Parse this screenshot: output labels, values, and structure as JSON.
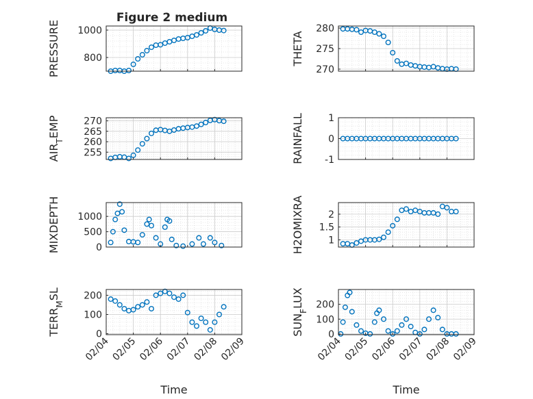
{
  "figure": {
    "title": "Figure 2 medium"
  },
  "chart_data": [
    {
      "type": "scatter",
      "ylabel": "PRESSURE",
      "xlim": [
        "2024-02-04",
        "2024-02-09"
      ],
      "ylim": [
        700,
        1030
      ],
      "yticks": [
        800,
        1000
      ],
      "ytick_labels": [
        "800",
        "1000"
      ],
      "xticks": [
        "02/04",
        "02/05",
        "02/06",
        "02/07",
        "02/08",
        "02/09"
      ],
      "grid": true,
      "x": [
        "2024-02-04T04:00",
        "2024-02-04T08:00",
        "2024-02-04T12:00",
        "2024-02-04T16:00",
        "2024-02-04T20:00",
        "2024-02-05T00:00",
        "2024-02-05T04:00",
        "2024-02-05T08:00",
        "2024-02-05T12:00",
        "2024-02-05T16:00",
        "2024-02-05T20:00",
        "2024-02-06T00:00",
        "2024-02-06T04:00",
        "2024-02-06T08:00",
        "2024-02-06T12:00",
        "2024-02-06T16:00",
        "2024-02-06T20:00",
        "2024-02-07T00:00",
        "2024-02-07T04:00",
        "2024-02-07T08:00",
        "2024-02-07T12:00",
        "2024-02-07T16:00",
        "2024-02-07T20:00",
        "2024-02-08T00:00",
        "2024-02-08T04:00",
        "2024-02-08T08:00"
      ],
      "y": [
        700,
        705,
        705,
        700,
        705,
        750,
        790,
        820,
        850,
        875,
        890,
        893,
        905,
        915,
        925,
        935,
        940,
        945,
        955,
        965,
        980,
        995,
        1015,
        1005,
        1000,
        997
      ]
    },
    {
      "type": "scatter",
      "ylabel": "THETA",
      "xlim": [
        "2024-02-04",
        "2024-02-09"
      ],
      "ylim": [
        269.5,
        280.5
      ],
      "yticks": [
        270,
        275,
        280
      ],
      "ytick_labels": [
        "270",
        "275",
        "280"
      ],
      "xticks": [
        "02/04",
        "02/05",
        "02/06",
        "02/07",
        "02/08",
        "02/09"
      ],
      "grid": true,
      "x": [
        "2024-02-04T04:00",
        "2024-02-04T08:00",
        "2024-02-04T12:00",
        "2024-02-04T16:00",
        "2024-02-04T20:00",
        "2024-02-05T00:00",
        "2024-02-05T04:00",
        "2024-02-05T08:00",
        "2024-02-05T12:00",
        "2024-02-05T16:00",
        "2024-02-05T20:00",
        "2024-02-06T00:00",
        "2024-02-06T04:00",
        "2024-02-06T08:00",
        "2024-02-06T12:00",
        "2024-02-06T16:00",
        "2024-02-06T20:00",
        "2024-02-07T00:00",
        "2024-02-07T04:00",
        "2024-02-07T08:00",
        "2024-02-07T12:00",
        "2024-02-07T16:00",
        "2024-02-07T20:00",
        "2024-02-08T00:00",
        "2024-02-08T04:00",
        "2024-02-08T08:00"
      ],
      "y": [
        279.8,
        279.8,
        279.7,
        279.6,
        279.0,
        279.4,
        279.3,
        279.0,
        278.6,
        278.0,
        276.5,
        274.0,
        272.0,
        271.2,
        271.4,
        271.0,
        270.8,
        270.6,
        270.5,
        270.4,
        270.6,
        270.3,
        270.1,
        270.0,
        270.1,
        270.0
      ]
    },
    {
      "type": "scatter",
      "ylabel": "AIR_TEMP",
      "xlim": [
        "2024-02-04",
        "2024-02-09"
      ],
      "ylim": [
        251.5,
        271.5
      ],
      "yticks": [
        255,
        260,
        265,
        270
      ],
      "ytick_labels": [
        "255",
        "260",
        "265",
        "270"
      ],
      "xticks": [
        "02/04",
        "02/05",
        "02/06",
        "02/07",
        "02/08",
        "02/09"
      ],
      "grid": true,
      "x": [
        "2024-02-04T04:00",
        "2024-02-04T08:00",
        "2024-02-04T12:00",
        "2024-02-04T16:00",
        "2024-02-04T20:00",
        "2024-02-05T00:00",
        "2024-02-05T04:00",
        "2024-02-05T08:00",
        "2024-02-05T12:00",
        "2024-02-05T16:00",
        "2024-02-05T20:00",
        "2024-02-06T00:00",
        "2024-02-06T04:00",
        "2024-02-06T08:00",
        "2024-02-06T12:00",
        "2024-02-06T16:00",
        "2024-02-06T20:00",
        "2024-02-07T00:00",
        "2024-02-07T04:00",
        "2024-02-07T08:00",
        "2024-02-07T12:00",
        "2024-02-07T16:00",
        "2024-02-07T20:00",
        "2024-02-08T00:00",
        "2024-02-08T04:00",
        "2024-02-08T08:00"
      ],
      "y": [
        252.0,
        252.5,
        252.8,
        252.6,
        252.0,
        253.5,
        256.0,
        259.0,
        261.5,
        264.0,
        265.5,
        265.8,
        265.4,
        265.0,
        265.6,
        266.2,
        266.5,
        266.8,
        267.0,
        267.5,
        268.3,
        269.2,
        270.2,
        270.6,
        270.1,
        269.8
      ]
    },
    {
      "type": "scatter",
      "ylabel": "RAINFALL",
      "xlim": [
        "2024-02-04",
        "2024-02-09"
      ],
      "ylim": [
        -1,
        1
      ],
      "yticks": [
        -1,
        0,
        1
      ],
      "ytick_labels": [
        "-1",
        "0",
        "1"
      ],
      "xticks": [
        "02/04",
        "02/05",
        "02/06",
        "02/07",
        "02/08",
        "02/09"
      ],
      "grid": true,
      "x": [
        "2024-02-04T04:00",
        "2024-02-04T08:00",
        "2024-02-04T12:00",
        "2024-02-04T16:00",
        "2024-02-04T20:00",
        "2024-02-05T00:00",
        "2024-02-05T04:00",
        "2024-02-05T08:00",
        "2024-02-05T12:00",
        "2024-02-05T16:00",
        "2024-02-05T20:00",
        "2024-02-06T00:00",
        "2024-02-06T04:00",
        "2024-02-06T08:00",
        "2024-02-06T12:00",
        "2024-02-06T16:00",
        "2024-02-06T20:00",
        "2024-02-07T00:00",
        "2024-02-07T04:00",
        "2024-02-07T08:00",
        "2024-02-07T12:00",
        "2024-02-07T16:00",
        "2024-02-07T20:00",
        "2024-02-08T00:00",
        "2024-02-08T04:00",
        "2024-02-08T08:00"
      ],
      "y": [
        0,
        0,
        0,
        0,
        0,
        0,
        0,
        0,
        0,
        0,
        0,
        0,
        0,
        0,
        0,
        0,
        0,
        0,
        0,
        0,
        0,
        0,
        0,
        0,
        0,
        0
      ]
    },
    {
      "type": "scatter",
      "ylabel": "MIXDEPTH",
      "xlim": [
        "2024-02-04",
        "2024-02-09"
      ],
      "ylim": [
        0,
        1450
      ],
      "yticks": [
        0,
        500,
        1000
      ],
      "ytick_labels": [
        "0",
        "500",
        "1000"
      ],
      "xticks": [
        "02/04",
        "02/05",
        "02/06",
        "02/07",
        "02/08",
        "02/09"
      ],
      "grid": true,
      "x": [
        "2024-02-04T04:00",
        "2024-02-04T06:00",
        "2024-02-04T08:00",
        "2024-02-04T10:00",
        "2024-02-04T12:00",
        "2024-02-04T14:00",
        "2024-02-04T16:00",
        "2024-02-04T20:00",
        "2024-02-05T00:00",
        "2024-02-05T04:00",
        "2024-02-05T08:00",
        "2024-02-05T12:00",
        "2024-02-05T14:00",
        "2024-02-05T16:00",
        "2024-02-05T20:00",
        "2024-02-06T00:00",
        "2024-02-06T04:00",
        "2024-02-06T06:00",
        "2024-02-06T08:00",
        "2024-02-06T10:00",
        "2024-02-06T14:00",
        "2024-02-06T20:00",
        "2024-02-07T04:00",
        "2024-02-07T10:00",
        "2024-02-07T14:00",
        "2024-02-07T20:00",
        "2024-02-08T00:00",
        "2024-02-08T06:00"
      ],
      "y": [
        150,
        500,
        900,
        1100,
        1400,
        1150,
        550,
        180,
        170,
        150,
        400,
        750,
        900,
        700,
        300,
        100,
        650,
        900,
        850,
        250,
        50,
        30,
        100,
        300,
        100,
        300,
        150,
        50
      ]
    },
    {
      "type": "scatter",
      "ylabel": "H2OMIXRA",
      "xlim": [
        "2024-02-04",
        "2024-02-09"
      ],
      "ylim": [
        0.72,
        2.45
      ],
      "yticks": [
        1,
        1.5,
        2
      ],
      "ytick_labels": [
        "1",
        "1.5",
        "2"
      ],
      "xticks": [
        "02/04",
        "02/05",
        "02/06",
        "02/07",
        "02/08",
        "02/09"
      ],
      "grid": true,
      "x": [
        "2024-02-04T04:00",
        "2024-02-04T08:00",
        "2024-02-04T12:00",
        "2024-02-04T16:00",
        "2024-02-04T20:00",
        "2024-02-05T00:00",
        "2024-02-05T04:00",
        "2024-02-05T08:00",
        "2024-02-05T12:00",
        "2024-02-05T16:00",
        "2024-02-05T20:00",
        "2024-02-06T00:00",
        "2024-02-06T04:00",
        "2024-02-06T08:00",
        "2024-02-06T12:00",
        "2024-02-06T16:00",
        "2024-02-06T20:00",
        "2024-02-07T00:00",
        "2024-02-07T04:00",
        "2024-02-07T08:00",
        "2024-02-07T12:00",
        "2024-02-07T16:00",
        "2024-02-07T20:00",
        "2024-02-08T00:00",
        "2024-02-08T04:00",
        "2024-02-08T08:00"
      ],
      "y": [
        0.85,
        0.85,
        0.8,
        0.88,
        0.95,
        1.0,
        1.0,
        1.0,
        1.02,
        1.1,
        1.3,
        1.55,
        1.8,
        2.15,
        2.2,
        2.1,
        2.15,
        2.1,
        2.05,
        2.05,
        2.05,
        2.0,
        2.3,
        2.25,
        2.1,
        2.1
      ]
    },
    {
      "type": "scatter",
      "ylabel": "TERR_MSL",
      "xlim": [
        "2024-02-04",
        "2024-02-09"
      ],
      "ylim": [
        -5,
        230
      ],
      "yticks": [
        0,
        100,
        200
      ],
      "ytick_labels": [
        "0",
        "100",
        "200"
      ],
      "xticks": [
        "02/04",
        "02/05",
        "02/06",
        "02/07",
        "02/08",
        "02/09"
      ],
      "xtick_labels": [
        "02/04",
        "02/05",
        "02/06",
        "02/07",
        "02/08",
        "02/09"
      ],
      "xlabel": "Time",
      "grid": true,
      "x": [
        "2024-02-04T04:00",
        "2024-02-04T08:00",
        "2024-02-04T12:00",
        "2024-02-04T16:00",
        "2024-02-04T20:00",
        "2024-02-05T00:00",
        "2024-02-05T04:00",
        "2024-02-05T08:00",
        "2024-02-05T12:00",
        "2024-02-05T16:00",
        "2024-02-05T20:00",
        "2024-02-06T00:00",
        "2024-02-06T04:00",
        "2024-02-06T08:00",
        "2024-02-06T12:00",
        "2024-02-06T16:00",
        "2024-02-06T20:00",
        "2024-02-07T00:00",
        "2024-02-07T04:00",
        "2024-02-07T08:00",
        "2024-02-07T12:00",
        "2024-02-07T16:00",
        "2024-02-07T20:00",
        "2024-02-08T00:00",
        "2024-02-08T04:00",
        "2024-02-08T08:00"
      ],
      "y": [
        180,
        170,
        150,
        130,
        120,
        125,
        140,
        150,
        165,
        130,
        200,
        210,
        220,
        210,
        190,
        180,
        200,
        110,
        60,
        40,
        80,
        60,
        20,
        60,
        100,
        140
      ]
    },
    {
      "type": "scatter",
      "ylabel": "SUN_FLUX",
      "xlim": [
        "2024-02-04",
        "2024-02-09"
      ],
      "ylim": [
        -5,
        300
      ],
      "yticks": [
        0,
        100,
        200
      ],
      "ytick_labels": [
        "0",
        "100",
        "200"
      ],
      "xticks": [
        "02/04",
        "02/05",
        "02/06",
        "02/07",
        "02/08",
        "02/09"
      ],
      "xtick_labels": [
        "02/04",
        "02/05",
        "02/06",
        "02/07",
        "02/08",
        "02/09"
      ],
      "xlabel": "Time",
      "grid": true,
      "x": [
        "2024-02-04T02:00",
        "2024-02-04T04:00",
        "2024-02-04T06:00",
        "2024-02-04T08:00",
        "2024-02-04T10:00",
        "2024-02-04T12:00",
        "2024-02-04T16:00",
        "2024-02-04T20:00",
        "2024-02-05T00:00",
        "2024-02-05T04:00",
        "2024-02-05T08:00",
        "2024-02-05T10:00",
        "2024-02-05T12:00",
        "2024-02-05T16:00",
        "2024-02-05T20:00",
        "2024-02-06T00:00",
        "2024-02-06T04:00",
        "2024-02-06T08:00",
        "2024-02-06T12:00",
        "2024-02-06T16:00",
        "2024-02-06T20:00",
        "2024-02-07T00:00",
        "2024-02-07T04:00",
        "2024-02-07T08:00",
        "2024-02-07T12:00",
        "2024-02-07T16:00",
        "2024-02-07T20:00",
        "2024-02-08T00:00",
        "2024-02-08T04:00",
        "2024-02-08T08:00"
      ],
      "y": [
        0,
        80,
        180,
        260,
        280,
        150,
        60,
        20,
        5,
        0,
        80,
        140,
        160,
        100,
        20,
        0,
        20,
        60,
        100,
        50,
        10,
        0,
        30,
        100,
        160,
        110,
        30,
        0,
        0,
        0
      ]
    }
  ]
}
